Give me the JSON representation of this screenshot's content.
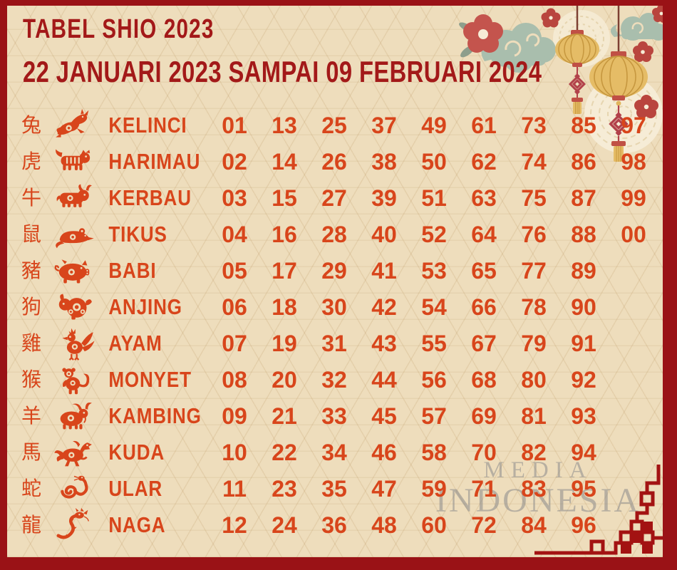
{
  "title": "TABEL SHIO 2023",
  "subtitle": "22 JANUARI 2023 SAMPAI 09 FEBRUARI 2024",
  "watermark": {
    "line1": "MEDIA",
    "line2": "INDONESIA"
  },
  "colors": {
    "frame_red": "#9a1216",
    "title_red": "#a31919",
    "accent_orange_red": "#d8451b",
    "background_beige": "#eeddbc",
    "cloud_green": "#a9bead",
    "blossom_red": "#c4544d",
    "small_flower_red": "#b9453e",
    "lantern_gold": "#e5bc66",
    "lantern_cap_red": "#c05045",
    "knot_red": "#b2414a",
    "ornament_red": "#a31212",
    "watermark_gray": "#8b8b8b"
  },
  "table": {
    "rows": [
      {
        "hanzi": "兔",
        "icon": "rabbit-icon",
        "name": "KELINCI",
        "numbers": [
          "01",
          "13",
          "25",
          "37",
          "49",
          "61",
          "73",
          "85",
          "97"
        ]
      },
      {
        "hanzi": "虎",
        "icon": "tiger-icon",
        "name": "HARIMAU",
        "numbers": [
          "02",
          "14",
          "26",
          "38",
          "50",
          "62",
          "74",
          "86",
          "98"
        ]
      },
      {
        "hanzi": "牛",
        "icon": "ox-icon",
        "name": "KERBAU",
        "numbers": [
          "03",
          "15",
          "27",
          "39",
          "51",
          "63",
          "75",
          "87",
          "99"
        ]
      },
      {
        "hanzi": "鼠",
        "icon": "rat-icon",
        "name": "TIKUS",
        "numbers": [
          "04",
          "16",
          "28",
          "40",
          "52",
          "64",
          "76",
          "88",
          "00"
        ]
      },
      {
        "hanzi": "豬",
        "icon": "pig-icon",
        "name": "BABI",
        "numbers": [
          "05",
          "17",
          "29",
          "41",
          "53",
          "65",
          "77",
          "89"
        ]
      },
      {
        "hanzi": "狗",
        "icon": "dog-icon",
        "name": "ANJING",
        "numbers": [
          "06",
          "18",
          "30",
          "42",
          "54",
          "66",
          "78",
          "90"
        ]
      },
      {
        "hanzi": "雞",
        "icon": "rooster-icon",
        "name": "AYAM",
        "numbers": [
          "07",
          "19",
          "31",
          "43",
          "55",
          "67",
          "79",
          "91"
        ]
      },
      {
        "hanzi": "猴",
        "icon": "monkey-icon",
        "name": "MONYET",
        "numbers": [
          "08",
          "20",
          "32",
          "44",
          "56",
          "68",
          "80",
          "92"
        ]
      },
      {
        "hanzi": "羊",
        "icon": "goat-icon",
        "name": "KAMBING",
        "numbers": [
          "09",
          "21",
          "33",
          "45",
          "57",
          "69",
          "81",
          "93"
        ]
      },
      {
        "hanzi": "馬",
        "icon": "horse-icon",
        "name": "KUDA",
        "numbers": [
          "10",
          "22",
          "34",
          "46",
          "58",
          "70",
          "82",
          "94"
        ]
      },
      {
        "hanzi": "蛇",
        "icon": "snake-icon",
        "name": "ULAR",
        "numbers": [
          "11",
          "23",
          "35",
          "47",
          "59",
          "71",
          "83",
          "95"
        ]
      },
      {
        "hanzi": "龍",
        "icon": "dragon-icon",
        "name": "NAGA",
        "numbers": [
          "12",
          "24",
          "36",
          "48",
          "60",
          "72",
          "84",
          "96"
        ]
      }
    ]
  },
  "decorations": {
    "top_right": [
      "plum-blossom-icon",
      "small-flower-icon",
      "cloud-icon",
      "lantern-icon",
      "chinese-knot-icon",
      "tassel-icon",
      "lace-circle-icon",
      "scale-circle-icon"
    ],
    "bottom_right": [
      "corner-ornament-icon"
    ]
  }
}
